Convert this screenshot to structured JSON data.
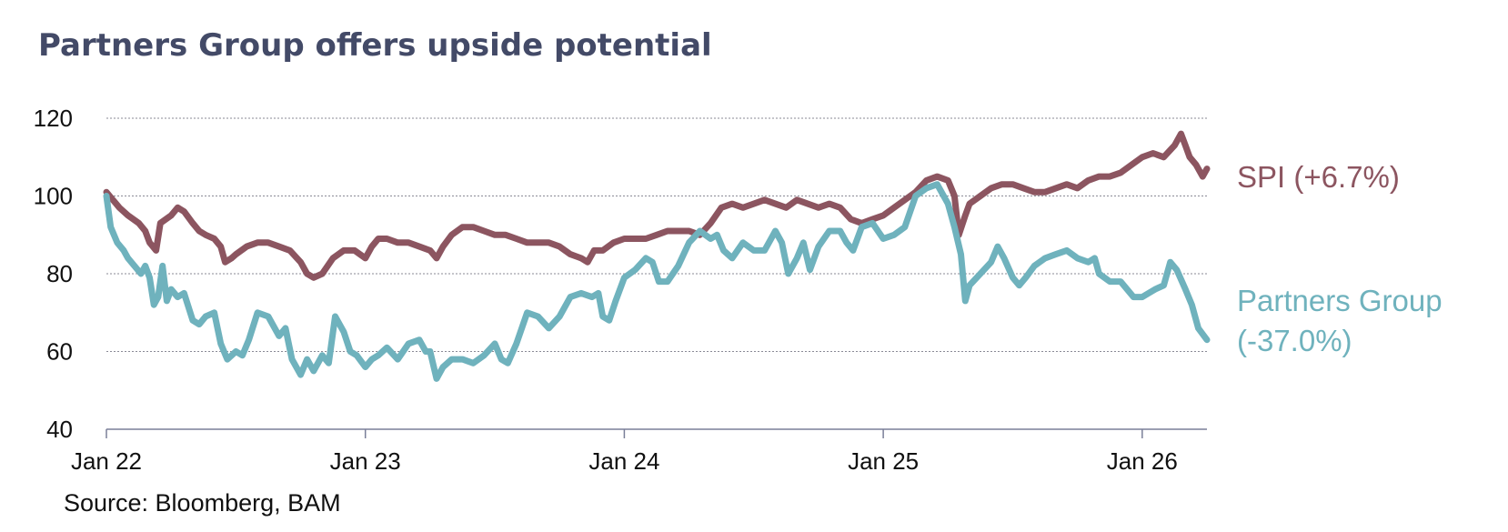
{
  "title": "Partners Group offers upside potential",
  "source": "Source: Bloomberg, BAM",
  "chart_data": {
    "type": "line",
    "title": "Partners Group offers upside potential",
    "ylim": [
      40,
      120
    ],
    "yticks": [
      "40",
      "60",
      "80",
      "100",
      "120"
    ],
    "xticks": [
      {
        "label": "Jan 22",
        "t": 0
      },
      {
        "label": "Jan 23",
        "t": 12
      },
      {
        "label": "Jan 24",
        "t": 24
      },
      {
        "label": "Jan 25",
        "t": 36
      },
      {
        "label": "Jan 26",
        "t": 48
      }
    ],
    "xlim": [
      0,
      51
    ],
    "grid": true,
    "series": [
      {
        "name": "SPI (+6.7%)",
        "color": "#8c5560",
        "points": [
          [
            0,
            101
          ],
          [
            0.3,
            99
          ],
          [
            0.6,
            97
          ],
          [
            1,
            95
          ],
          [
            1.5,
            93
          ],
          [
            1.8,
            91
          ],
          [
            2,
            88
          ],
          [
            2.3,
            86
          ],
          [
            2.5,
            93
          ],
          [
            3,
            95
          ],
          [
            3.3,
            97
          ],
          [
            3.6,
            96
          ],
          [
            4,
            93
          ],
          [
            4.3,
            91
          ],
          [
            4.6,
            90
          ],
          [
            5,
            89
          ],
          [
            5.3,
            87
          ],
          [
            5.5,
            83
          ],
          [
            5.8,
            84
          ],
          [
            6,
            85
          ],
          [
            6.5,
            87
          ],
          [
            7,
            88
          ],
          [
            7.5,
            88
          ],
          [
            8,
            87
          ],
          [
            8.5,
            86
          ],
          [
            9,
            83
          ],
          [
            9.3,
            80
          ],
          [
            9.6,
            79
          ],
          [
            10,
            80
          ],
          [
            10.5,
            84
          ],
          [
            11,
            86
          ],
          [
            11.5,
            86
          ],
          [
            12,
            84
          ],
          [
            12.3,
            87
          ],
          [
            12.6,
            89
          ],
          [
            13,
            89
          ],
          [
            13.5,
            88
          ],
          [
            14,
            88
          ],
          [
            14.5,
            87
          ],
          [
            15,
            86
          ],
          [
            15.3,
            84
          ],
          [
            15.6,
            87
          ],
          [
            16,
            90
          ],
          [
            16.5,
            92
          ],
          [
            17,
            92
          ],
          [
            17.5,
            91
          ],
          [
            18,
            90
          ],
          [
            18.5,
            90
          ],
          [
            19,
            89
          ],
          [
            19.5,
            88
          ],
          [
            20,
            88
          ],
          [
            20.5,
            88
          ],
          [
            21,
            87
          ],
          [
            21.5,
            85
          ],
          [
            22,
            84
          ],
          [
            22.3,
            83
          ],
          [
            22.6,
            86
          ],
          [
            23,
            86
          ],
          [
            23.5,
            88
          ],
          [
            24,
            89
          ],
          [
            24.5,
            89
          ],
          [
            25,
            89
          ],
          [
            25.5,
            90
          ],
          [
            26,
            91
          ],
          [
            26.5,
            91
          ],
          [
            27,
            91
          ],
          [
            27.5,
            90
          ],
          [
            28,
            93
          ],
          [
            28.5,
            97
          ],
          [
            29,
            98
          ],
          [
            29.5,
            97
          ],
          [
            30,
            98
          ],
          [
            30.5,
            99
          ],
          [
            31,
            98
          ],
          [
            31.5,
            97
          ],
          [
            32,
            99
          ],
          [
            32.5,
            98
          ],
          [
            33,
            97
          ],
          [
            33.5,
            98
          ],
          [
            34,
            97
          ],
          [
            34.5,
            94
          ],
          [
            35,
            93
          ],
          [
            35.5,
            94
          ],
          [
            36,
            95
          ],
          [
            36.5,
            97
          ],
          [
            37,
            99
          ],
          [
            37.5,
            101
          ],
          [
            38,
            104
          ],
          [
            38.5,
            105
          ],
          [
            39,
            104
          ],
          [
            39.3,
            100
          ],
          [
            39.5,
            90
          ],
          [
            39.8,
            95
          ],
          [
            40,
            98
          ],
          [
            40.5,
            100
          ],
          [
            41,
            102
          ],
          [
            41.5,
            103
          ],
          [
            42,
            103
          ],
          [
            42.5,
            102
          ],
          [
            43,
            101
          ],
          [
            43.5,
            101
          ],
          [
            44,
            102
          ],
          [
            44.5,
            103
          ],
          [
            45,
            102
          ],
          [
            45.5,
            104
          ],
          [
            46,
            105
          ],
          [
            46.5,
            105
          ],
          [
            47,
            106
          ],
          [
            47.5,
            108
          ],
          [
            48,
            110
          ],
          [
            48.5,
            111
          ],
          [
            49,
            110
          ],
          [
            49.5,
            113
          ],
          [
            49.8,
            116
          ],
          [
            50,
            113
          ],
          [
            50.2,
            110
          ],
          [
            50.5,
            108
          ],
          [
            50.8,
            105
          ],
          [
            51,
            107
          ]
        ]
      },
      {
        "name": "Partners Group (-37.0%)",
        "color": "#6fb2bd",
        "points": [
          [
            0,
            100
          ],
          [
            0.2,
            92
          ],
          [
            0.5,
            88
          ],
          [
            0.8,
            86
          ],
          [
            1,
            84
          ],
          [
            1.3,
            82
          ],
          [
            1.6,
            80
          ],
          [
            1.8,
            82
          ],
          [
            2,
            79
          ],
          [
            2.2,
            72
          ],
          [
            2.4,
            74
          ],
          [
            2.6,
            82
          ],
          [
            2.8,
            73
          ],
          [
            3,
            76
          ],
          [
            3.3,
            74
          ],
          [
            3.6,
            75
          ],
          [
            4,
            68
          ],
          [
            4.3,
            67
          ],
          [
            4.6,
            69
          ],
          [
            5,
            70
          ],
          [
            5.3,
            62
          ],
          [
            5.6,
            58
          ],
          [
            6,
            60
          ],
          [
            6.3,
            59
          ],
          [
            6.6,
            63
          ],
          [
            7,
            70
          ],
          [
            7.5,
            69
          ],
          [
            8,
            64
          ],
          [
            8.3,
            66
          ],
          [
            8.6,
            58
          ],
          [
            9,
            54
          ],
          [
            9.3,
            58
          ],
          [
            9.6,
            55
          ],
          [
            10,
            59
          ],
          [
            10.3,
            57
          ],
          [
            10.6,
            69
          ],
          [
            11,
            65
          ],
          [
            11.3,
            60
          ],
          [
            11.6,
            59
          ],
          [
            12,
            56
          ],
          [
            12.3,
            58
          ],
          [
            12.6,
            59
          ],
          [
            13,
            61
          ],
          [
            13.5,
            58
          ],
          [
            14,
            62
          ],
          [
            14.5,
            63
          ],
          [
            14.8,
            60
          ],
          [
            15,
            60
          ],
          [
            15.3,
            53
          ],
          [
            15.6,
            56
          ],
          [
            16,
            58
          ],
          [
            16.5,
            58
          ],
          [
            17,
            57
          ],
          [
            17.5,
            59
          ],
          [
            18,
            62
          ],
          [
            18.3,
            58
          ],
          [
            18.6,
            57
          ],
          [
            19,
            62
          ],
          [
            19.5,
            70
          ],
          [
            20,
            69
          ],
          [
            20.5,
            66
          ],
          [
            21,
            69
          ],
          [
            21.5,
            74
          ],
          [
            22,
            75
          ],
          [
            22.5,
            74
          ],
          [
            22.8,
            75
          ],
          [
            23,
            69
          ],
          [
            23.3,
            68
          ],
          [
            23.6,
            73
          ],
          [
            24,
            79
          ],
          [
            24.5,
            81
          ],
          [
            25,
            84
          ],
          [
            25.3,
            83
          ],
          [
            25.6,
            78
          ],
          [
            26,
            78
          ],
          [
            26.5,
            82
          ],
          [
            27,
            88
          ],
          [
            27.5,
            91
          ],
          [
            28,
            89
          ],
          [
            28.3,
            90
          ],
          [
            28.6,
            86
          ],
          [
            29,
            84
          ],
          [
            29.5,
            88
          ],
          [
            30,
            86
          ],
          [
            30.5,
            86
          ],
          [
            31,
            91
          ],
          [
            31.3,
            88
          ],
          [
            31.6,
            80
          ],
          [
            32,
            84
          ],
          [
            32.3,
            88
          ],
          [
            32.6,
            81
          ],
          [
            33,
            87
          ],
          [
            33.5,
            91
          ],
          [
            34,
            91
          ],
          [
            34.3,
            88
          ],
          [
            34.6,
            86
          ],
          [
            35,
            92
          ],
          [
            35.5,
            93
          ],
          [
            36,
            89
          ],
          [
            36.5,
            90
          ],
          [
            37,
            92
          ],
          [
            37.5,
            100
          ],
          [
            38,
            102
          ],
          [
            38.5,
            103
          ],
          [
            39,
            98
          ],
          [
            39.3,
            92
          ],
          [
            39.6,
            85
          ],
          [
            39.8,
            73
          ],
          [
            40,
            77
          ],
          [
            40.5,
            80
          ],
          [
            41,
            83
          ],
          [
            41.3,
            87
          ],
          [
            41.6,
            84
          ],
          [
            42,
            79
          ],
          [
            42.3,
            77
          ],
          [
            42.6,
            79
          ],
          [
            43,
            82
          ],
          [
            43.5,
            84
          ],
          [
            44,
            85
          ],
          [
            44.5,
            86
          ],
          [
            45,
            84
          ],
          [
            45.5,
            83
          ],
          [
            45.8,
            84
          ],
          [
            46,
            80
          ],
          [
            46.5,
            78
          ],
          [
            47,
            78
          ],
          [
            47.3,
            76
          ],
          [
            47.6,
            74
          ],
          [
            48,
            74
          ],
          [
            48.3,
            75
          ],
          [
            48.6,
            76
          ],
          [
            49,
            77
          ],
          [
            49.3,
            83
          ],
          [
            49.6,
            81
          ],
          [
            50,
            76
          ],
          [
            50.3,
            72
          ],
          [
            50.6,
            66
          ],
          [
            51,
            63
          ]
        ]
      }
    ]
  }
}
